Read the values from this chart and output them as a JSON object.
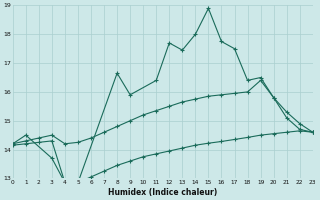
{
  "xlabel": "Humidex (Indice chaleur)",
  "bg_color": "#cde8e8",
  "grid_color": "#aacfcf",
  "line_color": "#1a6b5a",
  "ylim": [
    13,
    19
  ],
  "xlim": [
    0,
    23
  ],
  "top_y": [
    14.2,
    14.5,
    null,
    13.7,
    12.85,
    12.85,
    null,
    null,
    16.65,
    15.9,
    null,
    16.4,
    17.7,
    17.45,
    18.0,
    18.9,
    17.75,
    17.5,
    16.4,
    16.5,
    15.8,
    15.1,
    14.7,
    14.6
  ],
  "mid_y": [
    14.2,
    14.3,
    14.4,
    14.5,
    14.2,
    14.25,
    14.4,
    14.6,
    14.8,
    15.0,
    15.2,
    15.35,
    15.5,
    15.65,
    15.75,
    15.85,
    15.9,
    15.95,
    16.0,
    16.4,
    15.8,
    15.3,
    14.9,
    14.6
  ],
  "bot_y": [
    14.15,
    14.2,
    14.25,
    14.3,
    12.85,
    12.85,
    13.05,
    13.25,
    13.45,
    13.6,
    13.75,
    13.85,
    13.95,
    14.05,
    14.15,
    14.22,
    14.28,
    14.35,
    14.42,
    14.5,
    14.55,
    14.6,
    14.65,
    14.6
  ],
  "yticks": [
    13,
    14,
    15,
    16,
    17,
    18,
    19
  ],
  "xticks": [
    0,
    1,
    2,
    3,
    4,
    5,
    6,
    7,
    8,
    9,
    10,
    11,
    12,
    13,
    14,
    15,
    16,
    17,
    18,
    19,
    20,
    21,
    22,
    23
  ]
}
